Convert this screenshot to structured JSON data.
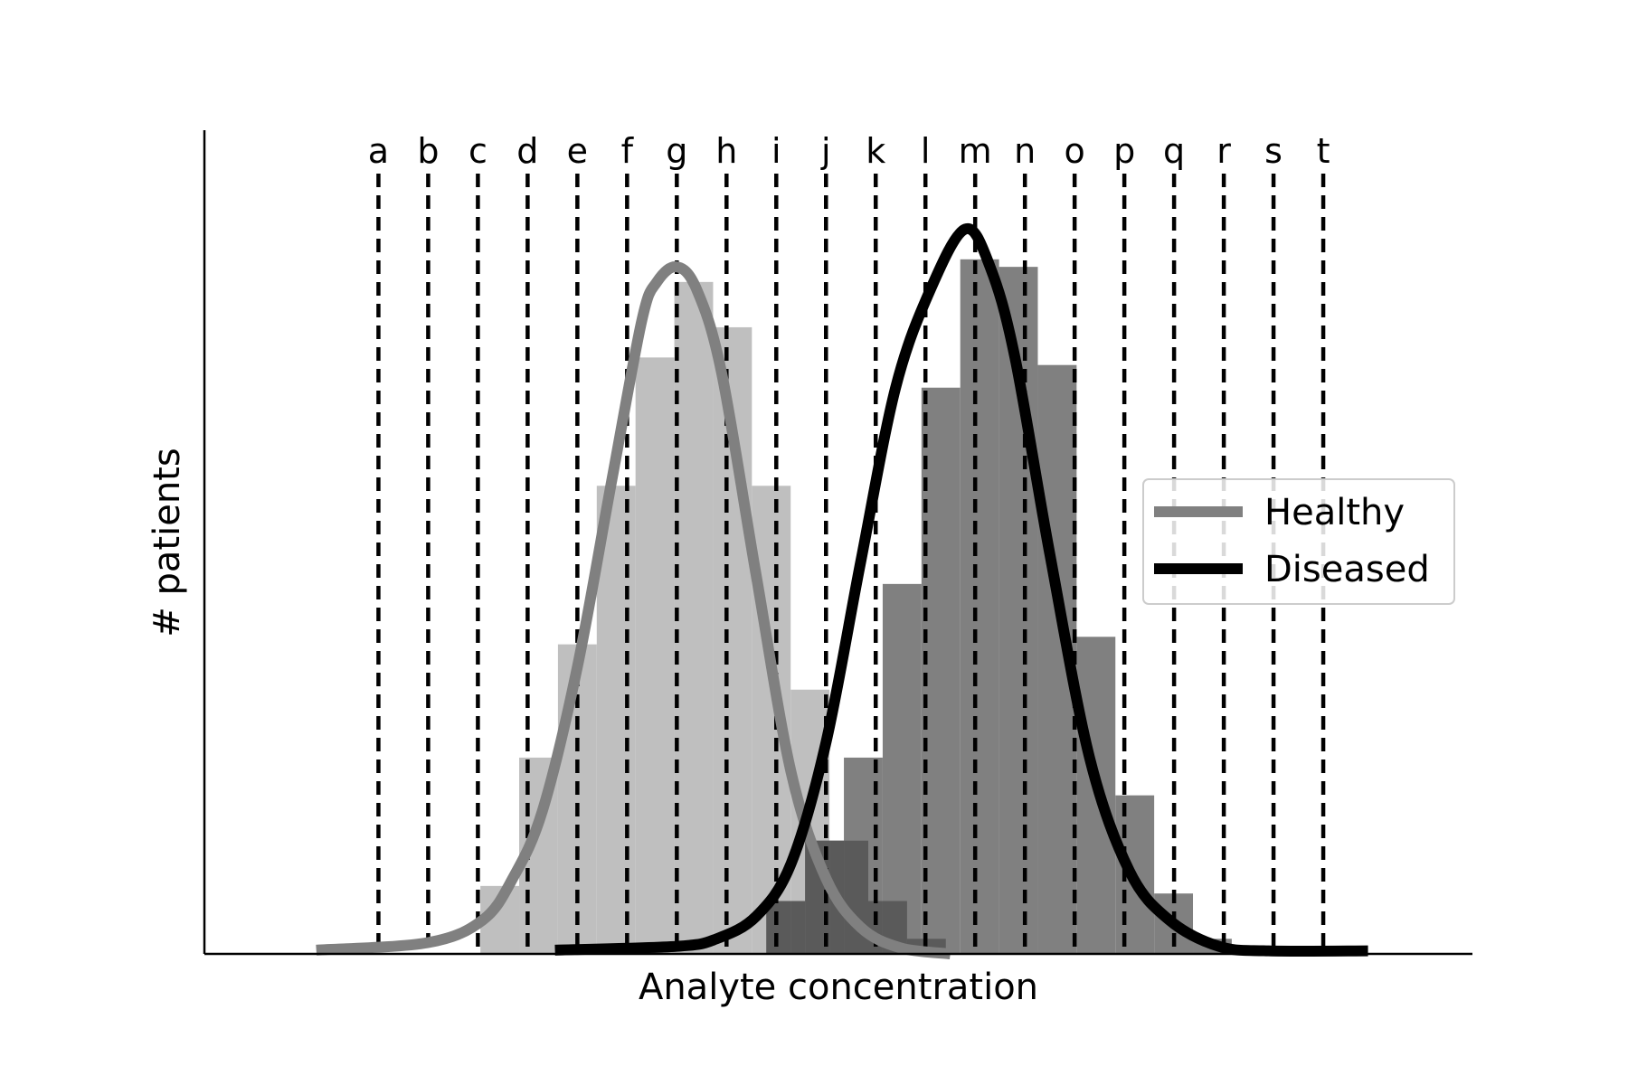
{
  "chart_data": {
    "type": "histogram",
    "xlabel": "Analyte concentration",
    "ylabel": "# patients",
    "x_range": [
      0,
      25.5
    ],
    "y_range": [
      0,
      100
    ],
    "cutoffs": {
      "labels": [
        "a",
        "b",
        "c",
        "d",
        "e",
        "f",
        "g",
        "h",
        "i",
        "j",
        "k",
        "l",
        "m",
        "n",
        "o",
        "p",
        "q",
        "r",
        "s",
        "t"
      ],
      "positions": [
        3.5,
        4.5,
        5.5,
        6.5,
        7.5,
        8.5,
        9.5,
        10.5,
        11.5,
        12.5,
        13.5,
        14.5,
        15.5,
        16.5,
        17.5,
        18.5,
        19.5,
        20.5,
        21.5,
        22.5
      ],
      "line_style": "dashed"
    },
    "series": [
      {
        "name": "Healthy",
        "histogram": {
          "bin_edges": [
            5.55,
            6.33,
            7.11,
            7.89,
            8.67,
            9.45,
            10.23,
            11.01,
            11.79,
            12.57,
            13.35,
            14.13,
            14.91
          ],
          "counts": [
            9,
            26,
            41,
            62,
            79,
            89,
            83,
            62,
            35,
            15,
            7,
            2
          ]
        },
        "curve": {
          "x": [
            2.25,
            4.5,
            5.6,
            6.2,
            6.8,
            7.5,
            8.2,
            8.8,
            9.1,
            9.5,
            9.9,
            10.4,
            11.1,
            11.8,
            12.5,
            13.2,
            14.0,
            15.0
          ],
          "y": [
            0.5,
            1.5,
            4.5,
            10,
            19,
            38,
            63,
            84,
            89,
            91,
            88,
            77,
            50,
            24,
            10,
            3.5,
            0.8,
            0
          ]
        },
        "histogram_color": "#bfbfbf",
        "line_color": "#808080"
      },
      {
        "name": "Diseased",
        "histogram": {
          "bin_edges": [
            11.3,
            12.08,
            12.86,
            13.64,
            14.42,
            15.2,
            15.98,
            16.76,
            17.54,
            18.32,
            19.1,
            19.88,
            20.66
          ],
          "counts": [
            7,
            15,
            26,
            49,
            75,
            92,
            91,
            78,
            42,
            21,
            8,
            2
          ]
        },
        "curve": {
          "x": [
            7.05,
            9.5,
            10.3,
            11.1,
            11.8,
            12.5,
            13.2,
            13.9,
            14.6,
            15.3,
            15.8,
            16.3,
            17.0,
            17.8,
            18.6,
            19.4,
            20.4,
            21.4,
            23.4
          ],
          "y": [
            0.5,
            1,
            2,
            5,
            12,
            28,
            52,
            75,
            88,
            96,
            91,
            79,
            53,
            26,
            11,
            4.5,
            1,
            0.4,
            0.4
          ]
        },
        "histogram_color": "#808080",
        "line_color": "#000000"
      }
    ],
    "overlap_color": "#5a5a5a",
    "legend": {
      "placement": "center-right",
      "entries": [
        "Healthy",
        "Diseased"
      ]
    },
    "grid": false
  }
}
